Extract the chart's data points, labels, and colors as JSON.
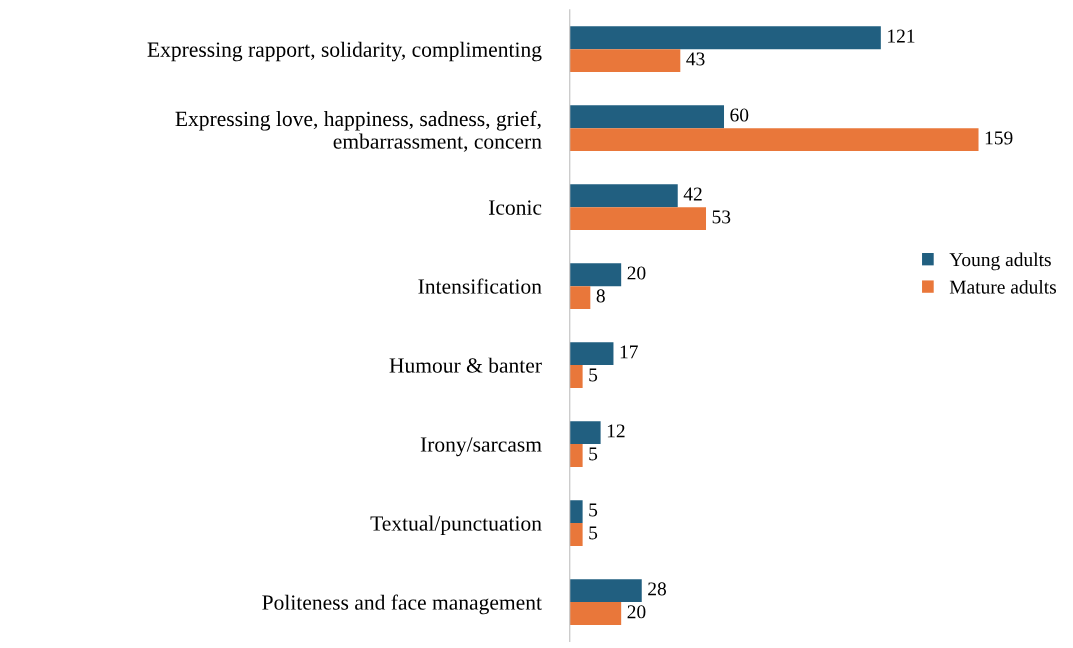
{
  "chart_data": {
    "type": "bar",
    "orientation": "horizontal",
    "categories": [
      "Expressing rapport, solidarity, complimenting",
      "Expressing love, happiness, sadness, grief,\nembarrassment, concern",
      "Iconic",
      "Intensification",
      "Humour & banter",
      "Irony/sarcasm",
      "Textual/punctuation",
      "Politeness and face management"
    ],
    "series": [
      {
        "name": "Young adults",
        "color": "#215f80",
        "values": [
          121,
          60,
          42,
          20,
          17,
          12,
          5,
          28
        ]
      },
      {
        "name": "Mature adults",
        "color": "#e9773a",
        "values": [
          43,
          159,
          53,
          8,
          5,
          5,
          5,
          20
        ]
      }
    ],
    "data_labels": true,
    "legend": "right",
    "grid": false
  }
}
